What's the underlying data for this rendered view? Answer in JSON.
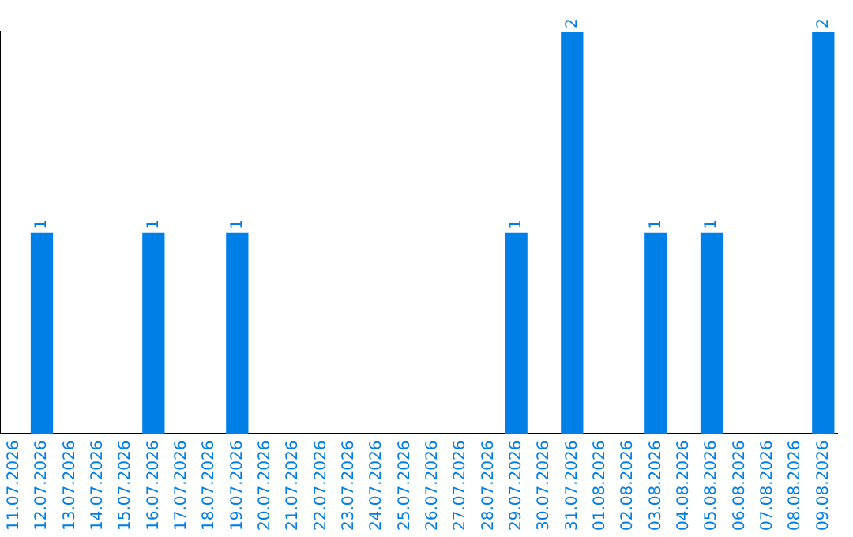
{
  "chart_data": {
    "type": "bar",
    "categories": [
      "11.07.2026",
      "12.07.2026",
      "13.07.2026",
      "14.07.2026",
      "15.07.2026",
      "16.07.2026",
      "17.07.2026",
      "18.07.2026",
      "19.07.2026",
      "20.07.2026",
      "21.07.2026",
      "22.07.2026",
      "23.07.2026",
      "24.07.2026",
      "25.07.2026",
      "26.07.2026",
      "27.07.2026",
      "28.07.2026",
      "29.07.2026",
      "30.07.2026",
      "31.07.2026",
      "01.08.2026",
      "02.08.2026",
      "03.08.2026",
      "04.08.2026",
      "05.08.2026",
      "06.08.2026",
      "07.08.2026",
      "08.08.2026",
      "09.08.2026"
    ],
    "values": [
      0,
      1,
      0,
      0,
      0,
      1,
      0,
      0,
      1,
      0,
      0,
      0,
      0,
      0,
      0,
      0,
      0,
      0,
      1,
      0,
      2,
      0,
      0,
      1,
      0,
      1,
      0,
      0,
      0,
      2
    ],
    "value_labels": [
      null,
      "1",
      null,
      null,
      null,
      "1",
      null,
      null,
      "1",
      null,
      null,
      null,
      null,
      null,
      null,
      null,
      null,
      null,
      "1",
      null,
      "2",
      null,
      null,
      "1",
      null,
      "1",
      null,
      null,
      null,
      "2"
    ],
    "color": "#007fe6",
    "grid": false,
    "legend": false,
    "tick_labels": "x"
  }
}
